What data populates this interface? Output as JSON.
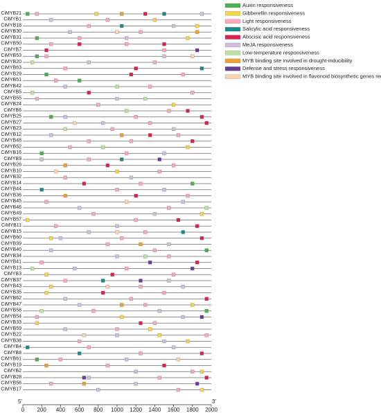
{
  "chart_data": {
    "type": "scatter",
    "x_start_label": "5'",
    "x_end_label": "3'",
    "xlim": [
      0,
      2000
    ],
    "xticks": [
      0,
      200,
      400,
      600,
      800,
      1000,
      1200,
      1400,
      1600,
      1800,
      2000
    ],
    "categories": [
      "CiMYB21",
      "CiMYB1",
      "CiMYB18",
      "CiMYB30",
      "CiMYB31",
      "CiMYB50",
      "CiMYB7",
      "CiMYB53",
      "CiMYB20",
      "CiMYB63",
      "CiMYB29",
      "CiMYB51",
      "CiMYB42",
      "CiMYB5",
      "CiMYB55",
      "CiMYB24",
      "CiMYB6",
      "CiMYB25",
      "CiMYB27",
      "CiMYB23",
      "CiMYB12",
      "CiMYB48",
      "CiMYB52",
      "CiMYB16",
      "CiMYB9",
      "CiMYB26",
      "CiMYB10",
      "CiMYB32",
      "CiMYB14",
      "CiMYB44",
      "CiMYB36",
      "CiMYB45",
      "CiMYB46",
      "CiMYB49",
      "CiMYB57",
      "CiMYB11",
      "CiMYB15",
      "CiMYB60",
      "CiMYB39",
      "CiMYB40",
      "CiMYB34",
      "CiMYB41",
      "CiMYB13",
      "CiMYB3",
      "CiMYB37",
      "CiMYB43",
      "CiMYB35",
      "CiMYB62",
      "CiMYB47",
      "CiMYB58",
      "CiMYB54",
      "CiMYB33",
      "CiMYB59",
      "CiMYB22",
      "CiMYB38",
      "CiMYB4",
      "CiMYB8",
      "CiMYB61",
      "CiMYB19",
      "CiMYB2",
      "CiMYB28",
      "CiMYB56",
      "CiMYB17"
    ],
    "series": [
      {
        "name": "Auxin responsiveness",
        "color": "#4caf50",
        "y": [
          "CiMYB21",
          "CiMYB31",
          "CiMYB53",
          "CiMYB29",
          "CiMYB51",
          "CiMYB25",
          "CiMYB16",
          "CiMYB14",
          "CiMYB40",
          "CiMYB58",
          "CiMYB61"
        ],
        "x": [
          50,
          150,
          150,
          250,
          600,
          300,
          200,
          1800,
          1950,
          1950,
          150
        ]
      },
      {
        "name": "Gibberellin responsiveness",
        "color": "#f5d547",
        "y": [
          "CiMYB21",
          "CiMYB1",
          "CiMYB18",
          "CiMYB31",
          "CiMYB24",
          "CiMYB52",
          "CiMYB10",
          "CiMYB49",
          "CiMYB57",
          "CiMYB60",
          "CiMYB3",
          "CiMYB43",
          "CiMYB35",
          "CiMYB47",
          "CiMYB54",
          "CiMYB33",
          "CiMYB59",
          "CiMYB22",
          "CiMYB38",
          "CiMYB2",
          "CiMYB17"
        ],
        "x": [
          780,
          1400,
          1850,
          1750,
          1600,
          1750,
          1000,
          1900,
          50,
          300,
          250,
          300,
          250,
          1800,
          1050,
          150,
          1350,
          1450,
          1750,
          1900,
          1900
        ]
      },
      {
        "name": "Light responsiveness",
        "color": "#f7a8bb",
        "y": [
          "CiMYB21",
          "CiMYB1",
          "CiMYB18",
          "CiMYB30",
          "CiMYB31",
          "CiMYB50",
          "CiMYB50",
          "CiMYB7",
          "CiMYB53",
          "CiMYB20",
          "CiMYB63",
          "CiMYB29",
          "CiMYB51",
          "CiMYB42",
          "CiMYB5",
          "CiMYB55",
          "CiMYB24",
          "CiMYB6",
          "CiMYB25",
          "CiMYB27",
          "CiMYB23",
          "CiMYB12",
          "CiMYB48",
          "CiMYB48",
          "CiMYB52",
          "CiMYB16",
          "CiMYB9",
          "CiMYB26",
          "CiMYB10",
          "CiMYB32",
          "CiMYB14",
          "CiMYB44",
          "CiMYB36",
          "CiMYB45",
          "CiMYB46",
          "CiMYB49",
          "CiMYB57",
          "CiMYB11",
          "CiMYB15",
          "CiMYB60",
          "CiMYB39",
          "CiMYB40",
          "CiMYB34",
          "CiMYB41",
          "CiMYB13",
          "CiMYB3",
          "CiMYB37",
          "CiMYB43",
          "CiMYB35",
          "CiMYB62",
          "CiMYB47",
          "CiMYB58",
          "CiMYB54",
          "CiMYB33",
          "CiMYB59",
          "CiMYB22",
          "CiMYB38",
          "CiMYB4",
          "CiMYB8",
          "CiMYB61",
          "CiMYB19",
          "CiMYB2",
          "CiMYB28",
          "CiMYB56",
          "CiMYB17"
        ],
        "x": [
          150,
          900,
          700,
          1250,
          600,
          300,
          1100,
          1500,
          250,
          1400,
          450,
          1700,
          350,
          1350,
          1800,
          150,
          800,
          1550,
          1200,
          1350,
          950,
          1650,
          700,
          1150,
          500,
          1100,
          700,
          1600,
          1450,
          450,
          1250,
          1000,
          1750,
          250,
          1550,
          750,
          1200,
          350,
          1300,
          1050,
          900,
          1400,
          1550,
          200,
          1100,
          1600,
          450,
          1250,
          1500,
          1150,
          1300,
          750,
          150,
          1400,
          1000,
          1950,
          600,
          700,
          1250,
          400,
          900,
          1800,
          1450,
          300,
          1650
        ]
      },
      {
        "name": "Salicylic acid responsiveness",
        "color": "#1a8a8a",
        "y": [
          "CiMYB21",
          "CiMYB18",
          "CiMYB63",
          "CiMYB9",
          "CiMYB44",
          "CiMYB15",
          "CiMYB37",
          "CiMYB8",
          "CiMYB4"
        ],
        "x": [
          1500,
          1050,
          1900,
          1050,
          200,
          1700,
          850,
          600,
          50
        ]
      },
      {
        "name": "Abscisic acid responsiveness",
        "color": "#e0204a",
        "y": [
          "CiMYB21",
          "CiMYB50",
          "CiMYB50",
          "CiMYB7",
          "CiMYB63",
          "CiMYB29",
          "CiMYB5",
          "CiMYB6",
          "CiMYB25",
          "CiMYB27",
          "CiMYB12",
          "CiMYB48",
          "CiMYB26",
          "CiMYB14",
          "CiMYB36",
          "CiMYB57",
          "CiMYB11",
          "CiMYB60",
          "CiMYB41",
          "CiMYB3",
          "CiMYB35",
          "CiMYB62",
          "CiMYB33",
          "CiMYB19",
          "CiMYB8",
          "CiMYB28"
        ],
        "x": [
          1300,
          600,
          1500,
          250,
          1200,
          1150,
          700,
          1750,
          1900,
          1950,
          1350,
          1800,
          900,
          650,
          1200,
          1650,
          1850,
          1900,
          1850,
          950,
          850,
          1950,
          1250,
          1500,
          1900,
          1950
        ]
      },
      {
        "name": "MeJA responsiveness",
        "color": "#cdbfdc",
        "y": [
          "CiMYB21",
          "CiMYB1",
          "CiMYB18",
          "CiMYB30",
          "CiMYB31",
          "CiMYB53",
          "CiMYB20",
          "CiMYB42",
          "CiMYB55",
          "CiMYB25",
          "CiMYB27",
          "CiMYB23",
          "CiMYB12",
          "CiMYB16",
          "CiMYB9",
          "CiMYB32",
          "CiMYB44",
          "CiMYB45",
          "CiMYB46",
          "CiMYB49",
          "CiMYB11",
          "CiMYB15",
          "CiMYB60",
          "CiMYB39",
          "CiMYB40",
          "CiMYB34",
          "CiMYB13",
          "CiMYB37",
          "CiMYB43",
          "CiMYB62",
          "CiMYB47",
          "CiMYB58",
          "CiMYB54",
          "CiMYB59",
          "CiMYB22",
          "CiMYB38",
          "CiMYB4",
          "CiMYB61",
          "CiMYB2",
          "CiMYB28",
          "CiMYB56",
          "CiMYB17"
        ],
        "x": [
          1900,
          300,
          1600,
          500,
          1100,
          1500,
          700,
          450,
          1000,
          450,
          850,
          1600,
          300,
          1500,
          200,
          1150,
          1500,
          1700,
          600,
          1400,
          1000,
          700,
          400,
          1550,
          300,
          1000,
          550,
          1550,
          1700,
          450,
          600,
          1450,
          1700,
          450,
          1000,
          1500,
          1600,
          1100,
          1200,
          700,
          1200,
          800
        ]
      },
      {
        "name": "Low-temperature responsiveness",
        "color": "#b9e3a2",
        "y": [
          "CiMYB20",
          "CiMYB42",
          "CiMYB5",
          "CiMYB55",
          "CiMYB6",
          "CiMYB23",
          "CiMYB52",
          "CiMYB46",
          "CiMYB34",
          "CiMYB13",
          "CiMYB58"
        ],
        "x": [
          100,
          1000,
          100,
          1300,
          1100,
          450,
          850,
          1950,
          1300,
          100,
          200
        ]
      },
      {
        "name": "MYB binding site involved in drought-inducibility",
        "color": "#f0a030",
        "y": [
          "CiMYB21",
          "CiMYB30",
          "CiMYB12",
          "CiMYB26",
          "CiMYB36",
          "CiMYB39",
          "CiMYB47",
          "CiMYB19",
          "CiMYB56"
        ],
        "x": [
          1050,
          1850,
          1050,
          450,
          450,
          1250,
          1050,
          250,
          650
        ]
      },
      {
        "name": "Defense and stress responsiveness",
        "color": "#6a3d9a",
        "y": [
          "CiMYB7",
          "CiMYB9",
          "CiMYB41",
          "CiMYB13",
          "CiMYB37",
          "CiMYB54",
          "CiMYB56",
          "CiMYB28"
        ],
        "x": [
          1850,
          1450,
          1350,
          1800,
          1250,
          1900,
          1850,
          650
        ]
      },
      {
        "name": "MYB binding site involved in flavonoid biosynthetic genes regulation",
        "color": "#fdd3ad",
        "y": [
          "CiMYB30",
          "CiMYB53",
          "CiMYB27",
          "CiMYB10",
          "CiMYB45",
          "CiMYB15",
          "CiMYB43",
          "CiMYB22",
          "CiMYB61"
        ],
        "x": [
          1000,
          1800,
          550,
          350,
          1100,
          1000,
          900,
          650,
          1650
        ]
      }
    ]
  }
}
